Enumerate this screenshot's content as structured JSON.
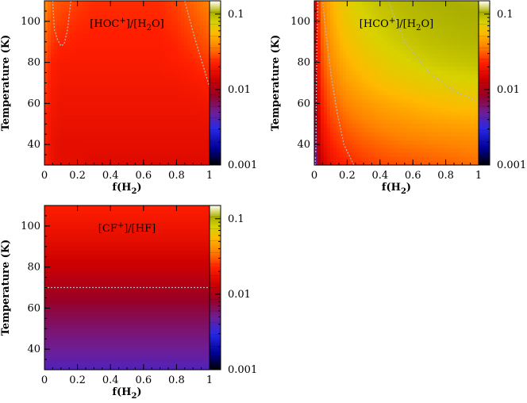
{
  "chart_data": [
    {
      "type": "heatmap",
      "title_parts": [
        "[HOC",
        "+",
        "]/[H",
        "2",
        "O]"
      ],
      "xlabel_parts": [
        "f(H",
        "2",
        ")"
      ],
      "ylabel": "Temperature (K)",
      "xlim": [
        0,
        1
      ],
      "ylim": [
        30,
        110
      ],
      "x_ticks": [
        "0",
        "0.2",
        "0.4",
        "0.6",
        "0.8",
        "1"
      ],
      "y_ticks": [
        "40",
        "60",
        "80",
        "100"
      ],
      "colorbar": {
        "scale": "log",
        "min": 0.001,
        "max": 0.15,
        "ticks": [
          "0.1",
          "0.01",
          "0.001"
        ]
      },
      "x": [
        0,
        0.05,
        0.1,
        0.15,
        0.2,
        0.3,
        0.4,
        0.5,
        0.6,
        0.7,
        0.8,
        0.9,
        1.0
      ],
      "y": [
        30,
        40,
        50,
        60,
        70,
        80,
        90,
        100,
        110
      ],
      "values": [
        [
          0.022,
          0.018,
          0.017,
          0.017,
          0.017,
          0.016,
          0.016,
          0.016,
          0.016,
          0.016,
          0.016,
          0.016,
          0.016
        ],
        [
          0.022,
          0.018,
          0.017,
          0.017,
          0.017,
          0.017,
          0.017,
          0.017,
          0.017,
          0.017,
          0.017,
          0.017,
          0.017
        ],
        [
          0.023,
          0.019,
          0.018,
          0.018,
          0.018,
          0.018,
          0.018,
          0.018,
          0.018,
          0.018,
          0.018,
          0.018,
          0.018
        ],
        [
          0.024,
          0.02,
          0.019,
          0.019,
          0.019,
          0.019,
          0.019,
          0.019,
          0.019,
          0.019,
          0.019,
          0.019,
          0.02
        ],
        [
          0.026,
          0.021,
          0.02,
          0.02,
          0.02,
          0.02,
          0.02,
          0.02,
          0.02,
          0.02,
          0.02,
          0.021,
          0.022
        ],
        [
          0.028,
          0.022,
          0.021,
          0.021,
          0.021,
          0.021,
          0.021,
          0.021,
          0.021,
          0.021,
          0.022,
          0.023,
          0.026
        ],
        [
          0.032,
          0.025,
          0.023,
          0.023,
          0.022,
          0.022,
          0.022,
          0.022,
          0.022,
          0.022,
          0.023,
          0.026,
          0.03
        ],
        [
          0.036,
          0.028,
          0.026,
          0.025,
          0.024,
          0.023,
          0.023,
          0.023,
          0.023,
          0.023,
          0.025,
          0.029,
          0.034
        ],
        [
          0.04,
          0.031,
          0.029,
          0.028,
          0.026,
          0.024,
          0.024,
          0.024,
          0.024,
          0.024,
          0.027,
          0.032,
          0.038
        ]
      ],
      "contours": [
        {
          "level": 0.03,
          "x": [
            0.05,
            0.06,
            0.08,
            0.1,
            0.12,
            0.14,
            0.16
          ],
          "y": [
            110,
            96,
            91,
            88,
            89,
            96,
            110
          ]
        },
        {
          "level": 0.03,
          "x": [
            0.85,
            0.88,
            0.91,
            0.94,
            0.97,
            1.0
          ],
          "y": [
            110,
            101,
            92,
            84,
            76,
            68
          ]
        }
      ]
    },
    {
      "type": "heatmap",
      "title_parts": [
        "[HCO",
        "+",
        "]/[H",
        "2",
        "O]"
      ],
      "xlabel_parts": [
        "f(H",
        "2",
        ")"
      ],
      "ylabel": "Temperature (K)",
      "xlim": [
        0,
        1
      ],
      "ylim": [
        30,
        110
      ],
      "x_ticks": [
        "0",
        "0.2",
        "0.4",
        "0.6",
        "0.8",
        "1"
      ],
      "y_ticks": [
        "40",
        "60",
        "80",
        "100"
      ],
      "colorbar": {
        "scale": "log",
        "min": 0.001,
        "max": 0.15,
        "ticks": [
          "0.1",
          "0.01",
          "0.001"
        ]
      },
      "x": [
        0,
        0.02,
        0.05,
        0.1,
        0.15,
        0.2,
        0.3,
        0.4,
        0.5,
        0.6,
        0.7,
        0.8,
        0.9,
        1.0
      ],
      "y": [
        30,
        40,
        50,
        60,
        70,
        80,
        90,
        100,
        110
      ],
      "values": [
        [
          0.003,
          0.008,
          0.014,
          0.018,
          0.021,
          0.023,
          0.025,
          0.027,
          0.028,
          0.029,
          0.03,
          0.031,
          0.032,
          0.033
        ],
        [
          0.004,
          0.01,
          0.017,
          0.022,
          0.025,
          0.027,
          0.03,
          0.032,
          0.034,
          0.035,
          0.036,
          0.037,
          0.038,
          0.039
        ],
        [
          0.005,
          0.012,
          0.02,
          0.026,
          0.029,
          0.032,
          0.036,
          0.039,
          0.041,
          0.043,
          0.045,
          0.046,
          0.047,
          0.048
        ],
        [
          0.006,
          0.014,
          0.023,
          0.03,
          0.034,
          0.038,
          0.043,
          0.047,
          0.05,
          0.053,
          0.056,
          0.058,
          0.06,
          0.061
        ],
        [
          0.007,
          0.016,
          0.026,
          0.034,
          0.04,
          0.045,
          0.052,
          0.058,
          0.063,
          0.067,
          0.07,
          0.073,
          0.075,
          0.077
        ],
        [
          0.008,
          0.018,
          0.029,
          0.039,
          0.046,
          0.052,
          0.061,
          0.068,
          0.074,
          0.079,
          0.083,
          0.086,
          0.088,
          0.09
        ],
        [
          0.009,
          0.02,
          0.032,
          0.043,
          0.052,
          0.059,
          0.069,
          0.077,
          0.083,
          0.088,
          0.092,
          0.095,
          0.097,
          0.099
        ],
        [
          0.01,
          0.022,
          0.035,
          0.047,
          0.057,
          0.065,
          0.076,
          0.084,
          0.09,
          0.095,
          0.098,
          0.101,
          0.103,
          0.104
        ],
        [
          0.011,
          0.024,
          0.038,
          0.051,
          0.062,
          0.07,
          0.082,
          0.09,
          0.096,
          0.1,
          0.103,
          0.105,
          0.107,
          0.108
        ]
      ],
      "contours": [
        {
          "level": 0.01,
          "x": [
            0.005,
            0.01,
            0.012,
            0.015,
            0.02
          ],
          "y": [
            30,
            40,
            60,
            85,
            110
          ]
        },
        {
          "level": 0.03,
          "x": [
            0.24,
            0.18,
            0.14,
            0.1,
            0.07,
            0.05
          ],
          "y": [
            30,
            40,
            55,
            75,
            95,
            110
          ]
        },
        {
          "level": 0.1,
          "x": [
            0.45,
            0.55,
            0.7,
            0.85,
            1.0
          ],
          "y": [
            110,
            90,
            75,
            66,
            61
          ]
        }
      ]
    },
    {
      "type": "heatmap",
      "title_parts": [
        "[CF",
        "+",
        "]/[HF]"
      ],
      "xlabel_parts": [
        "f(H",
        "2",
        ")"
      ],
      "ylabel": "Temperature (K)",
      "xlim": [
        0,
        1
      ],
      "ylim": [
        30,
        110
      ],
      "x_ticks": [
        "0",
        "0.2",
        "0.4",
        "0.6",
        "0.8",
        "1"
      ],
      "y_ticks": [
        "40",
        "60",
        "80",
        "100"
      ],
      "colorbar": {
        "scale": "log",
        "min": 0.001,
        "max": 0.15,
        "ticks": [
          "0.1",
          "0.01",
          "0.001"
        ]
      },
      "x": [
        0,
        1
      ],
      "y": [
        30,
        40,
        50,
        60,
        70,
        80,
        90,
        100,
        110
      ],
      "values": [
        [
          0.004,
          0.004
        ],
        [
          0.005,
          0.005
        ],
        [
          0.006,
          0.006
        ],
        [
          0.0075,
          0.0075
        ],
        [
          0.01,
          0.01
        ],
        [
          0.013,
          0.013
        ],
        [
          0.016,
          0.016
        ],
        [
          0.019,
          0.019
        ],
        [
          0.022,
          0.022
        ]
      ],
      "contours": [
        {
          "level": 0.01,
          "x": [
            0,
            1
          ],
          "y": [
            70,
            70
          ]
        }
      ]
    }
  ]
}
